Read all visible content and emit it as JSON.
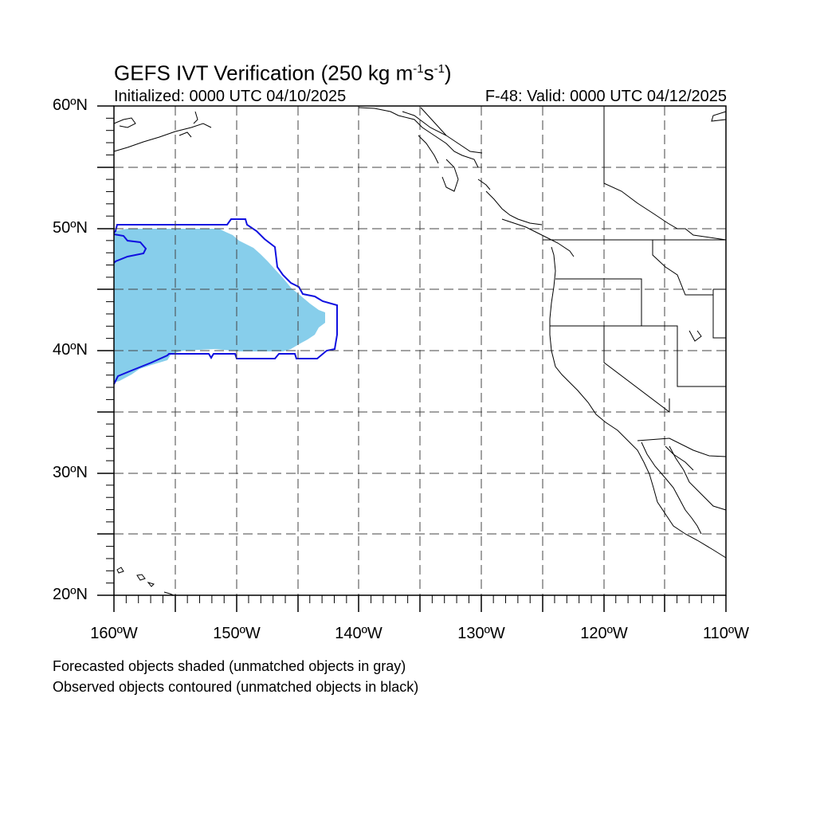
{
  "title": {
    "main": "GEFS IVT Verification (250 kg m",
    "exp1": "-1",
    "mid": "s",
    "exp2": "-1",
    "end": ")"
  },
  "initialized": "Initialized: 0000 UTC 04/10/2025",
  "valid": "F-48: Valid: 0000 UTC 04/12/2025",
  "axes": {
    "lat_labels": [
      "60ºN",
      "50ºN",
      "40ºN",
      "30ºN",
      "20ºN"
    ],
    "lon_labels": [
      "160ºW",
      "150ºW",
      "140ºW",
      "130ºW",
      "120ºW",
      "110ºW"
    ],
    "lon_range": [
      -160,
      -110
    ],
    "lat_range": [
      20,
      60
    ]
  },
  "legend": {
    "forecast": "Forecasted objects shaded (unmatched objects in gray)",
    "observed": "Observed objects contoured (unmatched objects in black)"
  },
  "colors": {
    "forecast_fill": "#87ceeb",
    "observed_contour": "#1010e0",
    "coast": "#000000",
    "grid": "#444444"
  }
}
